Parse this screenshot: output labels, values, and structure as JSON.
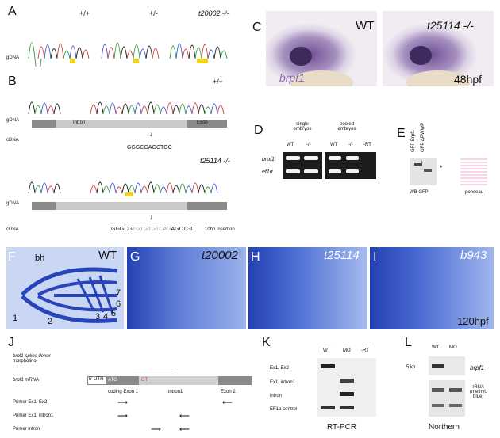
{
  "panels": {
    "A": {
      "label": "A",
      "genotypes": [
        "+/+",
        "+/-",
        "t20002 -/-"
      ],
      "row_label": "gDNA"
    },
    "B": {
      "label": "B",
      "wt_genotype": "+/+",
      "mut_genotype": "t25114 -/-",
      "row_gdna": "gDNA",
      "row_cdna": "cDNA",
      "intron": "Intron",
      "exon": "Exon",
      "wt_cdna_seq": "GGGCGAGCTGC",
      "mut_cdna_seq_a": "GGGCG",
      "mut_cdna_seq_ins": "TGTGTGTCAG",
      "mut_cdna_seq_b": "AGCTGC",
      "insertion_note": "10bp insertion"
    },
    "C": {
      "label": "C",
      "wt": "WT",
      "mut": "t25114 -/-",
      "gene": "brpf1",
      "stage": "48hpf"
    },
    "D": {
      "label": "D",
      "group1": [
        "single",
        "embryos"
      ],
      "group2": [
        "pooled",
        "embryos"
      ],
      "lanes": [
        "WT",
        "-/-",
        "WT",
        "-/-",
        "-RT"
      ],
      "rows": [
        "brpf1",
        "ef1α"
      ]
    },
    "E": {
      "label": "E",
      "lanes": [
        "GFP Brpf1",
        "GFP ΔPWWP"
      ],
      "blot1": "WB GFP",
      "blot2": "ponceau"
    },
    "F": {
      "label": "F",
      "genotype": "WT",
      "annotations": [
        "bh",
        "1",
        "2",
        "3",
        "4",
        "5",
        "6",
        "7"
      ]
    },
    "G": {
      "label": "G",
      "genotype": "t20002"
    },
    "H": {
      "label": "H",
      "genotype": "t25114"
    },
    "I": {
      "label": "I",
      "genotype": "b943",
      "stage": "120hpf"
    },
    "J": {
      "label": "J",
      "mo_title": [
        "brpf1 splice donor",
        "morpholino"
      ],
      "mrna": "brpf1 mRNA",
      "utr": "5' UTR",
      "atg": "ATG",
      "gt": "GT",
      "seg_coding": "coding Exon 1",
      "seg_intron": "intron1",
      "seg_exon2": "Exon 2",
      "primers": [
        "Primer Ex1/ Ex2",
        "Primer Ex1/ intron1",
        "Primer intron"
      ]
    },
    "K": {
      "label": "K",
      "lanes": [
        "WT",
        "MO",
        "-RT"
      ],
      "rows": [
        "Ex1/ Ex2",
        "Ex1/ intron1",
        "intron",
        "EF1α control"
      ],
      "caption": "RT-PCR"
    },
    "L": {
      "label": "L",
      "lanes": [
        "WT",
        "MO"
      ],
      "size": "5 kb",
      "gene": "brpf1",
      "rrna": [
        "rRNA",
        "(methyl.",
        "blue)"
      ],
      "caption": "Northern"
    }
  },
  "colors": {
    "trace_a": "#2c9a3a",
    "trace_c": "#3a4fd0",
    "trace_g": "#111111",
    "trace_t": "#d23a3a",
    "highlight": "#f3d21c",
    "cartilage_bg": "#2745b8",
    "cartilage": "#d8e4ff",
    "insitu": "#7a5a9a"
  }
}
